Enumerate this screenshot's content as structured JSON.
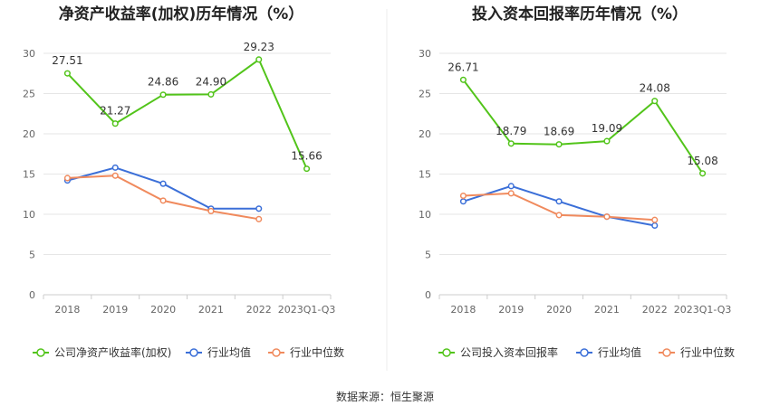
{
  "source_note": "数据来源：恒生聚源",
  "colors": {
    "company": "#52C41A",
    "industry_avg": "#3B6FD8",
    "industry_median": "#F08A5D",
    "grid": "#E6E6E6",
    "divider": "#EEEEEE"
  },
  "chart_data": [
    {
      "type": "line",
      "title": "净资产收益率(加权)历年情况（%）",
      "categories": [
        "2018",
        "2019",
        "2020",
        "2021",
        "2022",
        "2023Q1-Q3"
      ],
      "ylim": [
        0,
        30
      ],
      "yticks": [
        0,
        5,
        10,
        15,
        20,
        25,
        30
      ],
      "grid": true,
      "legend_position": "bottom",
      "series": [
        {
          "name": "公司净资产收益率(加权)",
          "color_key": "company",
          "show_labels": true,
          "values": [
            27.51,
            21.27,
            24.86,
            24.9,
            29.23,
            15.66
          ]
        },
        {
          "name": "行业均值",
          "color_key": "industry_avg",
          "show_labels": false,
          "values": [
            14.2,
            15.8,
            13.8,
            10.7,
            10.7,
            null
          ]
        },
        {
          "name": "行业中位数",
          "color_key": "industry_median",
          "show_labels": false,
          "values": [
            14.5,
            14.8,
            11.7,
            10.4,
            9.4,
            null
          ]
        }
      ]
    },
    {
      "type": "line",
      "title": "投入资本回报率历年情况（%）",
      "categories": [
        "2018",
        "2019",
        "2020",
        "2021",
        "2022",
        "2023Q1-Q3"
      ],
      "ylim": [
        0,
        30
      ],
      "yticks": [
        0,
        5,
        10,
        15,
        20,
        25,
        30
      ],
      "grid": true,
      "legend_position": "bottom",
      "series": [
        {
          "name": "公司投入资本回报率",
          "color_key": "company",
          "show_labels": true,
          "values": [
            26.71,
            18.79,
            18.69,
            19.09,
            24.08,
            15.08
          ]
        },
        {
          "name": "行业均值",
          "color_key": "industry_avg",
          "show_labels": false,
          "values": [
            11.6,
            13.5,
            11.6,
            9.7,
            8.6,
            null
          ]
        },
        {
          "name": "行业中位数",
          "color_key": "industry_median",
          "show_labels": false,
          "values": [
            12.3,
            12.6,
            9.9,
            9.7,
            9.3,
            null
          ]
        }
      ]
    }
  ]
}
